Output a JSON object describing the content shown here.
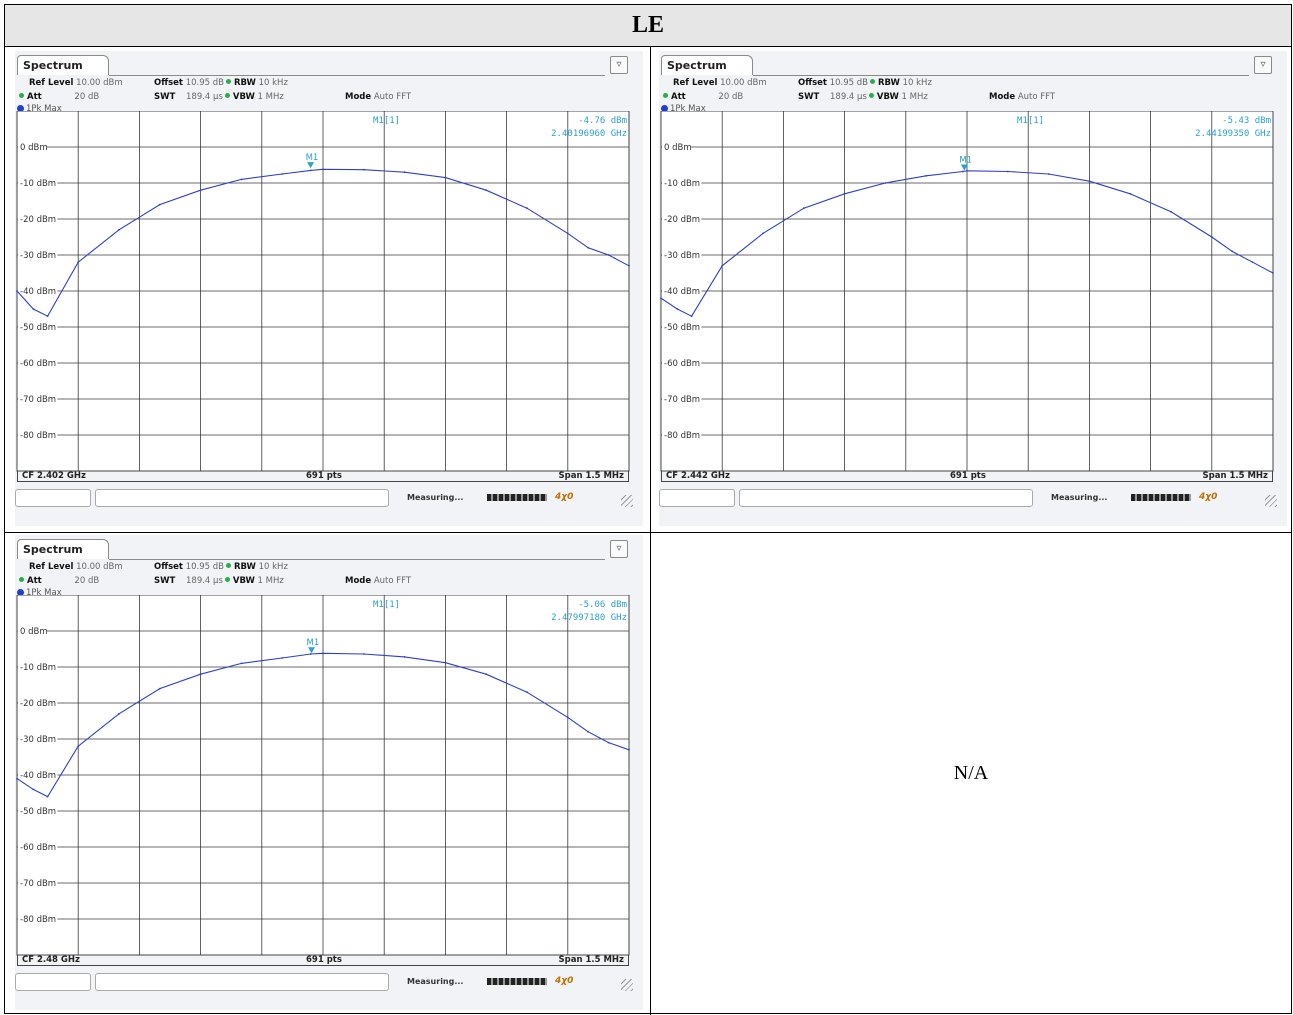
{
  "header": {
    "title": "LE"
  },
  "placeholder": {
    "text": "N/A"
  },
  "common": {
    "tab_label": "Spectrum",
    "ref_level_label": "Ref Level",
    "ref_level": "10.00 dBm",
    "offset_label": "Offset",
    "offset": "10.95 dB",
    "rbw_label": "RBW",
    "rbw": "10 kHz",
    "att_label": "Att",
    "att": "20 dB",
    "swt_label": "SWT",
    "swt": "189.4 µs",
    "vbw_label": "VBW",
    "vbw": "1 MHz",
    "mode_label": "Mode",
    "mode": "Auto FFT",
    "trace_label": "1Pk Max",
    "points": "691 pts",
    "span": "Span 1.5 MHz",
    "measuring": "Measuring...",
    "marker_label": "M1[1]",
    "marker_tag": "M1",
    "y_tick_labels": [
      "0 dBm",
      "-10 dBm",
      "-20 dBm",
      "-30 dBm",
      "-40 dBm",
      "-50 dBm",
      "-60 dBm",
      "-70 dBm",
      "-80 dBm"
    ],
    "trace_color": "#2f3fc8",
    "marker_color": "#2aa0d0",
    "status_ok": "#27b048"
  },
  "panels": {
    "p1": {
      "cf": "CF 2.402 GHz",
      "marker_level": "-4.76 dBm",
      "marker_freq": "2.40196960 GHz"
    },
    "p2": {
      "cf": "CF 2.442 GHz",
      "marker_level": "-5.43 dBm",
      "marker_freq": "2.44199350 GHz"
    },
    "p3": {
      "cf": "CF 2.48 GHz",
      "marker_level": "-5.06 dBm",
      "marker_freq": "2.47997180 GHz"
    }
  },
  "chart_data": [
    {
      "type": "line",
      "title": "Spectrum",
      "center_freq_ghz": 2.402,
      "span_mhz": 1.5,
      "x_unit": "MHz offset from CF",
      "y_unit": "dBm",
      "ylim": [
        -90,
        10
      ],
      "x": [
        -0.75,
        -0.71,
        -0.675,
        -0.6,
        -0.5,
        -0.4,
        -0.3,
        -0.2,
        -0.1,
        -0.03,
        0.0,
        0.1,
        0.2,
        0.3,
        0.4,
        0.5,
        0.6,
        0.65,
        0.7,
        0.75
      ],
      "series": [
        {
          "values": [
            -40,
            -45,
            -47,
            -32,
            -23,
            -16,
            -12,
            -9,
            -7.5,
            -6.5,
            -6.2,
            -6.3,
            -7,
            -8.5,
            -12,
            -17,
            -24,
            -28,
            -30,
            -33
          ]
        }
      ],
      "marker": {
        "freq_ghz": 2.4019696,
        "level_dbm": -4.76
      },
      "grid": true
    },
    {
      "type": "line",
      "title": "Spectrum",
      "center_freq_ghz": 2.442,
      "span_mhz": 1.5,
      "x_unit": "MHz offset from CF",
      "y_unit": "dBm",
      "ylim": [
        -90,
        10
      ],
      "x": [
        -0.75,
        -0.71,
        -0.675,
        -0.6,
        -0.5,
        -0.4,
        -0.3,
        -0.2,
        -0.1,
        -0.01,
        0.0,
        0.1,
        0.2,
        0.3,
        0.4,
        0.5,
        0.6,
        0.65,
        0.7,
        0.75
      ],
      "series": [
        {
          "values": [
            -42,
            -45,
            -47,
            -33,
            -24,
            -17,
            -13,
            -10,
            -8,
            -6.8,
            -6.6,
            -6.8,
            -7.5,
            -9.5,
            -13,
            -18,
            -25,
            -29,
            -32,
            -35
          ]
        }
      ],
      "marker": {
        "freq_ghz": 2.4419935,
        "level_dbm": -5.43
      },
      "grid": true
    },
    {
      "type": "line",
      "title": "Spectrum",
      "center_freq_ghz": 2.48,
      "span_mhz": 1.5,
      "x_unit": "MHz offset from CF",
      "y_unit": "dBm",
      "ylim": [
        -90,
        10
      ],
      "x": [
        -0.75,
        -0.71,
        -0.675,
        -0.6,
        -0.5,
        -0.4,
        -0.3,
        -0.2,
        -0.1,
        -0.03,
        0.0,
        0.1,
        0.2,
        0.3,
        0.4,
        0.5,
        0.6,
        0.65,
        0.7,
        0.75
      ],
      "series": [
        {
          "values": [
            -41,
            -44,
            -46,
            -32,
            -23,
            -16,
            -12,
            -9,
            -7.5,
            -6.4,
            -6.2,
            -6.4,
            -7.2,
            -8.8,
            -12,
            -17,
            -24,
            -28,
            -31,
            -33
          ]
        }
      ],
      "marker": {
        "freq_ghz": 2.4799718,
        "level_dbm": -5.06
      },
      "grid": true
    }
  ]
}
